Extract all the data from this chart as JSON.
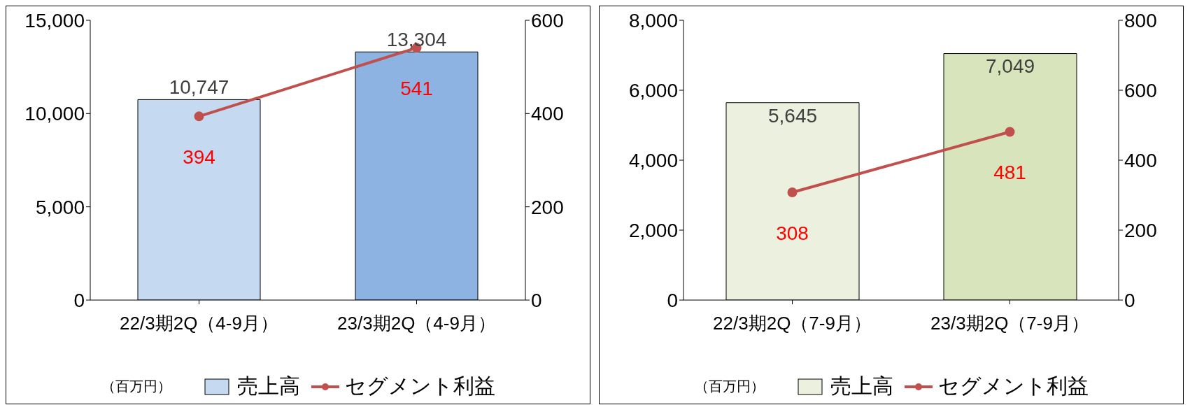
{
  "chart_data": [
    {
      "type": "bar",
      "categories": [
        "22/3期2Q（4-9月）",
        "23/3期2Q（4-9月）"
      ],
      "series": [
        {
          "name": "売上高",
          "color": "#c5d9f1",
          "colors": [
            "#c5d9f1",
            "#8db3e2"
          ],
          "values": [
            10747,
            13304
          ],
          "value_labels": [
            "10,747",
            "13,304"
          ]
        },
        {
          "name": "セグメント利益",
          "type": "line",
          "axis": "y2",
          "color": "#c0504d",
          "values": [
            394,
            541
          ],
          "value_labels": [
            "394",
            "541"
          ]
        }
      ],
      "ylim": [
        0,
        15000
      ],
      "yticks": [
        0,
        {
          "value": 5000,
          "label": "5,000"
        },
        {
          "value": 10000,
          "label": "10,000"
        },
        {
          "value": 15000,
          "label": "15,000"
        }
      ],
      "y2lim": [
        0,
        600
      ],
      "y2ticks": [
        0,
        200,
        400,
        600
      ],
      "legend": "bottom",
      "marker": "circle",
      "annotations": [
        "（百万円）"
      ]
    },
    {
      "type": "bar",
      "categories": [
        "22/3期2Q（7-9月）",
        "23/3期2Q（7-9月）"
      ],
      "series": [
        {
          "name": "売上高",
          "color": "#ebf1de",
          "colors": [
            "#ebf1de",
            "#d7e4bc"
          ],
          "values": [
            5645,
            7049
          ],
          "value_labels": [
            "5,645",
            "7,049"
          ]
        },
        {
          "name": "セグメント利益",
          "type": "line",
          "axis": "y2",
          "color": "#c0504d",
          "values": [
            308,
            481
          ],
          "value_labels": [
            "308",
            "481"
          ]
        }
      ],
      "ylim": [
        0,
        8000
      ],
      "yticks": [
        0,
        {
          "value": 2000,
          "label": "2,000"
        },
        {
          "value": 4000,
          "label": "4,000"
        },
        {
          "value": 6000,
          "label": "6,000"
        },
        {
          "value": 8000,
          "label": "8,000"
        }
      ],
      "y2lim": [
        0,
        800
      ],
      "y2ticks": [
        0,
        200,
        400,
        600,
        800
      ],
      "legend": "bottom",
      "marker": "circle",
      "annotations": [
        "（百万円）"
      ]
    }
  ]
}
